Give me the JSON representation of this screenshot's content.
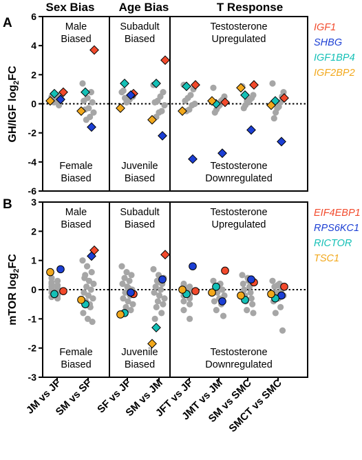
{
  "headers": {
    "sex": "Sex Bias",
    "age": "Age Bias",
    "t": "T Response"
  },
  "categories": [
    "JM vs JF",
    "SM vs SF",
    "SF vs JF",
    "SM vs JM",
    "JFT vs JF",
    "JMT vs JM",
    "SM vs SMC",
    "SMCT vs SMC"
  ],
  "colors": {
    "gray": "#a6a6a6",
    "red": "#f24a2c",
    "blue": "#1c3fd4",
    "cyan": "#14c0b6",
    "orange": "#f2a81c"
  },
  "chart_data": [
    {
      "type": "scatter",
      "panel_label": "A",
      "ylabel_main": "GH/IGF log",
      "ylabel_sub": "2",
      "ylabel_tail": "FC",
      "ylim": [
        -6,
        6
      ],
      "yticks": [
        "6",
        "4",
        "2",
        "0",
        "-2",
        "-4",
        "-6"
      ],
      "marker": "diamond",
      "legend": [
        {
          "name": "IGF1",
          "color": "#f24a2c"
        },
        {
          "name": "SHBG",
          "color": "#1c3fd4"
        },
        {
          "name": "IGF1BP4",
          "color": "#14c0b6"
        },
        {
          "name": "IGF2BP2",
          "color": "#f2a81c"
        }
      ],
      "annotations": {
        "top": [
          "Male\nBiased",
          "Subadult\nBiased",
          "Testosterone\nUpregulated"
        ],
        "bottom": [
          "Female\nBiased",
          "Juvenile\nBiased",
          "Testosterone\nDownregulated"
        ]
      },
      "gray_points": [
        [
          0.5,
          0.6,
          0.4,
          0.5,
          0.3,
          0.2,
          0.1,
          0.7,
          -0.1,
          0.6
        ],
        [
          1.4,
          0.8,
          0.4,
          0.2,
          0.1,
          -0.3,
          -0.4,
          -0.6,
          -0.9,
          -1.1
        ],
        [
          0.8,
          0.5,
          0.6,
          0.3,
          0.2,
          0.1,
          0.4,
          0.9
        ],
        [
          1.3,
          0.8,
          0.5,
          0.2,
          0.1,
          -0.1,
          -0.5,
          -0.6,
          -0.9
        ],
        [
          1.3,
          1.0,
          0.6,
          0.4,
          0.2,
          0.0,
          -0.1,
          -0.4,
          -0.5
        ],
        [
          1.1,
          0.5,
          0.3,
          0.2,
          -0.1,
          -0.2,
          -0.4,
          -0.6
        ],
        [
          1.2,
          0.6,
          0.4,
          0.3,
          0.1,
          0.2,
          -0.1,
          -0.3
        ],
        [
          1.4,
          0.8,
          0.5,
          0.1,
          -0.2,
          -0.3,
          -0.6,
          -1.0
        ]
      ],
      "series": [
        {
          "name": "IGF1",
          "color": "#f24a2c",
          "values": [
            0.8,
            3.7,
            0.7,
            3.0,
            1.3,
            0.1,
            1.3,
            0.4
          ]
        },
        {
          "name": "SHBG",
          "color": "#1c3fd4",
          "values": [
            0.3,
            -1.6,
            0.6,
            -2.2,
            -3.8,
            -3.4,
            -1.8,
            -2.6
          ]
        },
        {
          "name": "IGF1BP4",
          "color": "#14c0b6",
          "values": [
            0.7,
            0.8,
            1.4,
            1.4,
            1.2,
            0.0,
            0.6,
            0.2
          ]
        },
        {
          "name": "IGF2BP2",
          "color": "#f2a81c",
          "values": [
            0.2,
            -0.5,
            -0.3,
            -1.1,
            -0.5,
            0.2,
            1.1,
            -0.1
          ]
        }
      ]
    },
    {
      "type": "scatter",
      "panel_label": "B",
      "ylabel_main": "mTOR log",
      "ylabel_sub": "2",
      "ylabel_tail": "FC",
      "ylim": [
        -3,
        3
      ],
      "yticks": [
        "3",
        "2",
        "1",
        "0",
        "-1",
        "-2",
        "-3"
      ],
      "marker": "mixed",
      "legend": [
        {
          "name": "EIF4EBP1",
          "color": "#f24a2c"
        },
        {
          "name": "RPS6KC1",
          "color": "#1c3fd4"
        },
        {
          "name": "RICTOR",
          "color": "#14c0b6"
        },
        {
          "name": "TSC1",
          "color": "#f2a81c"
        }
      ],
      "annotations": {
        "top": [
          "Male\nBiased",
          "Subadult\nBiased",
          "Testosterone\nUpregulated"
        ],
        "bottom": [
          "Female\nBiased",
          "Juvenile\nBiased",
          "Testosterone\nDownregulated"
        ]
      },
      "gray_points": [
        [
          0.4,
          0.3,
          0.2,
          0.15,
          0.1,
          0.05,
          0.0,
          -0.05,
          -0.1,
          -0.2,
          -0.25,
          -0.3,
          0.25,
          -0.15
        ],
        [
          1.0,
          0.8,
          0.6,
          0.4,
          0.3,
          0.2,
          0.1,
          0.0,
          -0.1,
          -0.2,
          -0.3,
          -0.4,
          -0.6,
          -0.8,
          -1.0,
          -1.1,
          0.5,
          -0.5
        ],
        [
          0.8,
          0.6,
          0.5,
          0.4,
          0.3,
          0.2,
          0.1,
          0.0,
          -0.1,
          -0.2,
          -0.3,
          -0.4,
          -0.5,
          -0.6,
          -0.7,
          -0.8,
          0.05
        ],
        [
          0.7,
          0.5,
          0.4,
          0.3,
          0.2,
          0.1,
          0.0,
          -0.1,
          -0.2,
          -0.3,
          -0.4,
          -0.5,
          -0.6,
          -0.8,
          -1.0,
          0.25
        ],
        [
          0.2,
          0.1,
          0.05,
          0.0,
          -0.05,
          -0.1,
          -0.2,
          -0.3,
          -0.4,
          -0.5,
          -0.7,
          -1.0,
          0.15,
          -0.2
        ],
        [
          0.3,
          0.2,
          0.1,
          0.0,
          -0.1,
          -0.2,
          -0.3,
          -0.4,
          -0.5,
          -0.7,
          -0.9,
          0.15
        ],
        [
          0.5,
          0.3,
          0.2,
          0.1,
          0.0,
          -0.1,
          -0.2,
          -0.3,
          -0.4,
          -0.5,
          -0.7,
          -0.8,
          0.4
        ],
        [
          0.3,
          0.2,
          0.1,
          0.0,
          -0.1,
          -0.2,
          -0.3,
          -0.4,
          -0.6,
          -0.8,
          -1.4,
          0.15
        ]
      ],
      "series": [
        {
          "name": "EIF4EBP1",
          "color": "#f24a2c",
          "values": [
            -0.05,
            1.35,
            -0.15,
            1.2,
            -0.05,
            0.65,
            0.25,
            0.1
          ],
          "shapes": [
            "circle",
            "diamond",
            "circle",
            "diamond",
            "circle",
            "circle",
            "circle",
            "circle"
          ]
        },
        {
          "name": "RPS6KC1",
          "color": "#1c3fd4",
          "values": [
            0.7,
            1.15,
            -0.1,
            0.35,
            0.8,
            -0.4,
            0.35,
            -0.2
          ],
          "shapes": [
            "circle",
            "diamond",
            "circle",
            "circle",
            "circle",
            "circle",
            "circle",
            "circle"
          ]
        },
        {
          "name": "RICTOR",
          "color": "#14c0b6",
          "values": [
            -0.15,
            -0.5,
            -0.8,
            -1.3,
            -0.15,
            0.1,
            -0.35,
            -0.3
          ],
          "shapes": [
            "circle",
            "circle",
            "circle",
            "diamond",
            "circle",
            "circle",
            "circle",
            "circle"
          ]
        },
        {
          "name": "TSC1",
          "color": "#f2a81c",
          "values": [
            0.6,
            -0.35,
            -0.85,
            -1.85,
            0.0,
            -0.1,
            -0.2,
            -0.15
          ],
          "shapes": [
            "circle",
            "circle",
            "circle",
            "diamond",
            "circle",
            "circle",
            "circle",
            "circle"
          ]
        }
      ]
    }
  ]
}
